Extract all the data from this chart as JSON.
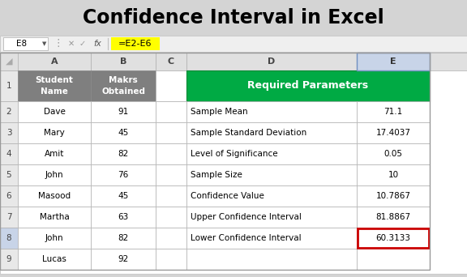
{
  "title": "Confidence Interval in Excel",
  "formula_bar_cell": "E8",
  "formula_bar_formula": "=E2-E6",
  "left_col_a": [
    "Student\nName",
    "Dave",
    "Mary",
    "Amit",
    "John",
    "Masood",
    "Martha",
    "John",
    "Lucas"
  ],
  "left_col_b": [
    "Makrs\nObtained",
    "91",
    "45",
    "82",
    "76",
    "45",
    "63",
    "82",
    "92"
  ],
  "right_header": "Required Parameters",
  "right_labels": [
    "Sample Mean",
    "Sample Standard Deviation",
    "Level of Significance",
    "Sample Size",
    "Confidence Value",
    "Upper Confidence Interval",
    "Lower Confidence Interval"
  ],
  "right_values": [
    "71.1",
    "17.4037",
    "0.05",
    "10",
    "10.7867",
    "81.8867",
    "60.3133"
  ],
  "header_bg": "#7f7f7f",
  "header_fg": "#ffffff",
  "green_bg": "#00AA44",
  "green_fg": "#ffffff",
  "highlight_cell_border": "#cc0000",
  "formula_highlight": "#ffff00",
  "title_color": "#000000",
  "bg_color": "#d4d4d4",
  "sheet_bg": "#ffffff",
  "colhdr_bg": "#e0e0e0",
  "grid_color": "#b0b0b0"
}
